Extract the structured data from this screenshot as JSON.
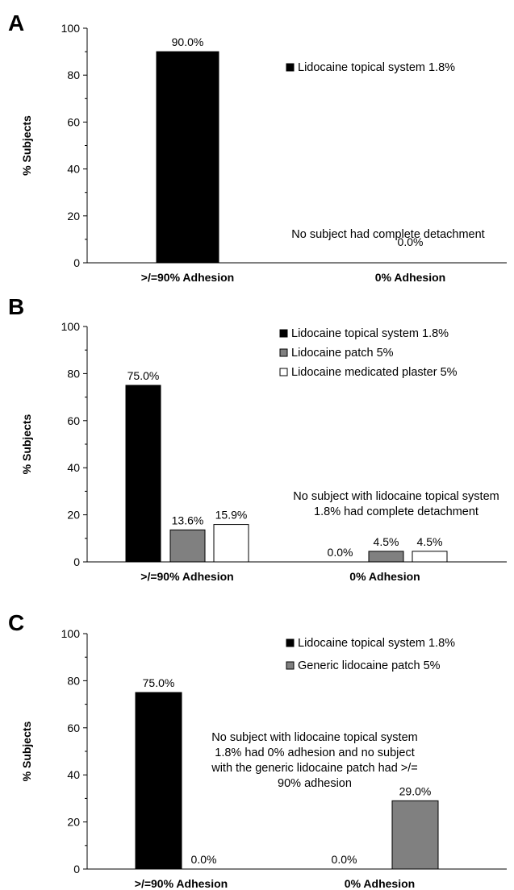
{
  "chart_data": [
    {
      "panel": "A",
      "type": "bar",
      "ylabel": "% Subjects",
      "ylim": [
        0,
        100
      ],
      "yticks": [
        "0",
        "20",
        "40",
        "60",
        "80",
        "100"
      ],
      "categories": [
        ">/=90% Adhesion",
        "0% Adhesion"
      ],
      "series": [
        {
          "name": "Lidocaine topical system 1.8%",
          "color": "#000000",
          "values": [
            90.0,
            0.0
          ],
          "labels": [
            "90.0%",
            "0.0%"
          ]
        }
      ],
      "annotation": [
        "No subject had complete detachment"
      ]
    },
    {
      "panel": "B",
      "type": "bar",
      "ylabel": "% Subjects",
      "ylim": [
        0,
        100
      ],
      "yticks": [
        "0",
        "20",
        "40",
        "60",
        "80",
        "100"
      ],
      "categories": [
        ">/=90% Adhesion",
        "0% Adhesion"
      ],
      "series": [
        {
          "name": "Lidocaine topical system 1.8%",
          "color": "#000000",
          "values": [
            75.0,
            0.0
          ],
          "labels": [
            "75.0%",
            "0.0%"
          ]
        },
        {
          "name": "Lidocaine patch 5%",
          "color": "#808080",
          "values": [
            13.6,
            4.5
          ],
          "labels": [
            "13.6%",
            "4.5%"
          ]
        },
        {
          "name": "Lidocaine medicated plaster 5%",
          "color": "#ffffff",
          "values": [
            15.9,
            4.5
          ],
          "labels": [
            "15.9%",
            "4.5%"
          ]
        }
      ],
      "annotation": [
        "No subject with lidocaine topical system",
        "1.8% had complete detachment"
      ]
    },
    {
      "panel": "C",
      "type": "bar",
      "ylabel": "% Subjects",
      "ylim": [
        0,
        100
      ],
      "yticks": [
        "0",
        "20",
        "40",
        "60",
        "80",
        "100"
      ],
      "categories": [
        ">/=90% Adhesion",
        "0% Adhesion"
      ],
      "series": [
        {
          "name": "Lidocaine topical system 1.8%",
          "color": "#000000",
          "values": [
            75.0,
            0.0
          ],
          "labels": [
            "75.0%",
            "0.0%"
          ]
        },
        {
          "name": "Generic lidocaine patch 5%",
          "color": "#808080",
          "values": [
            0.0,
            29.0
          ],
          "labels": [
            "0.0%",
            "29.0%"
          ]
        }
      ],
      "annotation": [
        "No subject with lidocaine topical system",
        "1.8% had 0% adhesion and no subject",
        "with the generic lidocaine patch had  >/=",
        "90% adhesion"
      ]
    }
  ]
}
